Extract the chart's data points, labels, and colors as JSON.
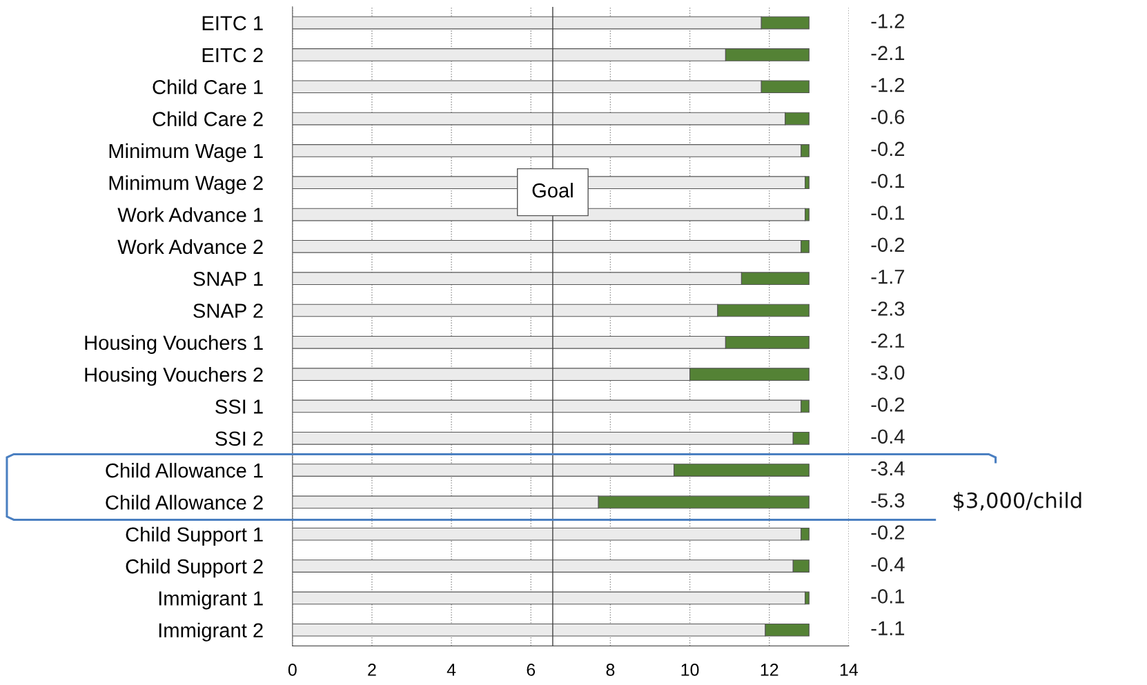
{
  "chart_data": {
    "type": "bar",
    "orientation": "horizontal",
    "stacked": true,
    "categories": [
      "EITC 1",
      "EITC 2",
      "Child Care 1",
      "Child Care 2",
      "Minimum Wage 1",
      "Minimum Wage 2",
      "Work Advance 1",
      "Work Advance 2",
      "SNAP 1",
      "SNAP 2",
      "Housing Vouchers 1",
      "Housing Vouchers 2",
      "SSI 1",
      "SSI 2",
      "Child Allowance 1",
      "Child Allowance 2",
      "Child Support 1",
      "Child Support 2",
      "Immigrant 1",
      "Immigrant 2"
    ],
    "series": [
      {
        "color": "#ebebeb",
        "values": [
          11.8,
          10.9,
          11.8,
          12.4,
          12.8,
          12.9,
          12.9,
          12.8,
          11.3,
          10.7,
          10.9,
          10.0,
          12.8,
          12.6,
          9.6,
          7.7,
          12.8,
          12.6,
          12.9,
          11.9
        ]
      },
      {
        "color": "#548235",
        "values": [
          1.2,
          2.1,
          1.2,
          0.6,
          0.2,
          0.1,
          0.1,
          0.2,
          1.7,
          2.3,
          2.1,
          3.0,
          0.2,
          0.4,
          3.4,
          5.3,
          0.2,
          0.4,
          0.1,
          1.1
        ]
      }
    ],
    "xlim": [
      0,
      14
    ],
    "xticks": [
      0,
      2,
      4,
      6,
      8,
      10,
      12,
      14
    ],
    "grid": "x",
    "ref_lines": [
      {
        "axis": "x",
        "value": 6.55,
        "label": "Goal",
        "color": "#404040"
      }
    ],
    "annotations": [
      "-1.2",
      "-2.1",
      "-1.2",
      "-0.6",
      "-0.2",
      "-0.1",
      "-0.1",
      "-0.2",
      "-1.7",
      "-2.3",
      "-2.1",
      "-3.0",
      "-0.2",
      "-0.4",
      "-3.4",
      "-5.3",
      "-0.2",
      "-0.4",
      "-0.1",
      "-1.1",
      "$3,000/child"
    ]
  }
}
